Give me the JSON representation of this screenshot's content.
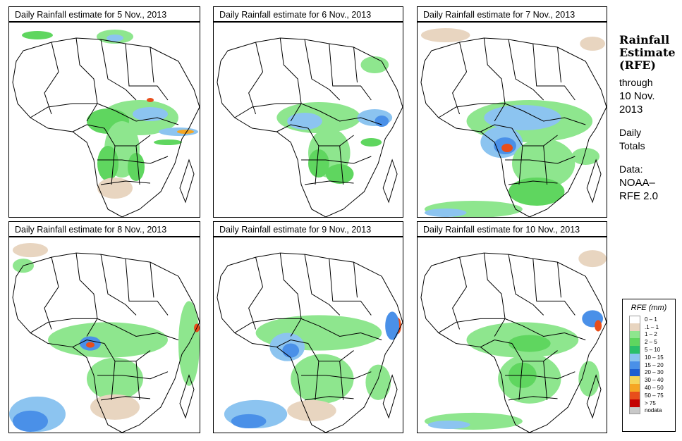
{
  "panels": [
    {
      "title": "Daily Rainfall estimate for  5 Nov., 2013"
    },
    {
      "title": "Daily Rainfall estimate for  6 Nov., 2013"
    },
    {
      "title": "Daily Rainfall estimate for  7 Nov., 2013"
    },
    {
      "title": "Daily Rainfall estimate for  8 Nov., 2013"
    },
    {
      "title": "Daily Rainfall estimate for  9 Nov., 2013"
    },
    {
      "title": "Daily Rainfall estimate for  10 Nov., 2013"
    }
  ],
  "sidebar": {
    "heading1": "Rainfall",
    "heading2": "Estimate",
    "heading3": "(RFE)",
    "through": "through",
    "date1": "10 Nov.",
    "date2": "2013",
    "daily1": "Daily",
    "daily2": "Totals",
    "data_label": "Data:",
    "source1": "NOAA–",
    "source2": "RFE 2.0"
  },
  "legend": {
    "title": "RFE (mm)",
    "items": [
      {
        "label": "0 – 1",
        "color": "#ffffff"
      },
      {
        "label": ".1 – 1",
        "color": "#e8d5c0"
      },
      {
        "label": "1 – 2",
        "color": "#8ee68e"
      },
      {
        "label": "2 – 5",
        "color": "#5fd65f"
      },
      {
        "label": "5 – 10",
        "color": "#2bbf6a"
      },
      {
        "label": "10 – 15",
        "color": "#8cc4f0"
      },
      {
        "label": "15 – 20",
        "color": "#4a90e8"
      },
      {
        "label": "20 – 30",
        "color": "#1f5fd0"
      },
      {
        "label": "30 – 40",
        "color": "#f5d65a"
      },
      {
        "label": "40 – 50",
        "color": "#f5a623"
      },
      {
        "label": "50 – 75",
        "color": "#e84e1b"
      },
      {
        "label": "> 75",
        "color": "#c40000"
      },
      {
        "label": "nodata",
        "color": "#c8c8c8"
      }
    ]
  }
}
